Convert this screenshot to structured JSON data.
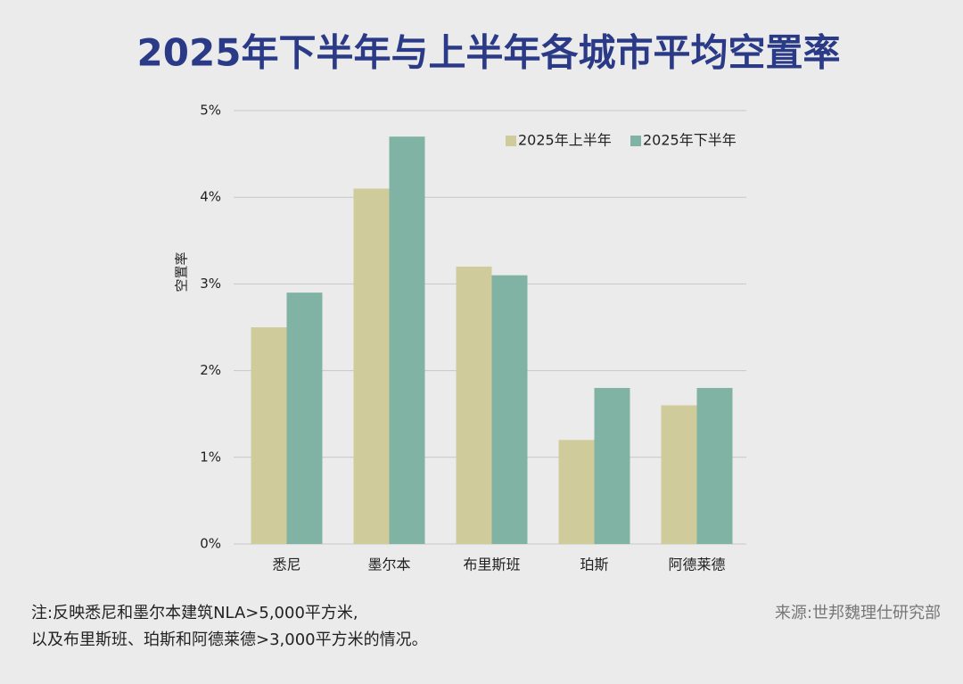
{
  "chart_data": {
    "type": "bar",
    "title": "2025年下半年与上半年各城市平均空置率",
    "ylabel": "空置率",
    "categories": [
      "悉尼",
      "墨尔本",
      "布里斯班",
      "珀斯",
      "阿德莱德"
    ],
    "series": [
      {
        "name": "2025年上半年",
        "color": "#cfcb9a",
        "values": [
          2.5,
          4.1,
          3.2,
          1.2,
          1.6
        ]
      },
      {
        "name": "2025年下半年",
        "color": "#80b3a3",
        "values": [
          2.9,
          4.7,
          3.1,
          1.8,
          1.8
        ]
      }
    ],
    "ylim": [
      0,
      5
    ],
    "yticks": [
      {
        "value": 0,
        "label": "0%"
      },
      {
        "value": 1,
        "label": "1%"
      },
      {
        "value": 2,
        "label": "2%"
      },
      {
        "value": 3,
        "label": "3%"
      },
      {
        "value": 4,
        "label": "4%"
      },
      {
        "value": 5,
        "label": "5%"
      }
    ],
    "grid": true,
    "legend": "top-right",
    "notes": [
      "注:反映悉尼和墨尔本建筑NLA>5,000平方米,",
      "以及布里斯班、珀斯和阿德莱德>3,000平方米的情况。"
    ],
    "source": "来源:世邦魏理仕研究部"
  }
}
